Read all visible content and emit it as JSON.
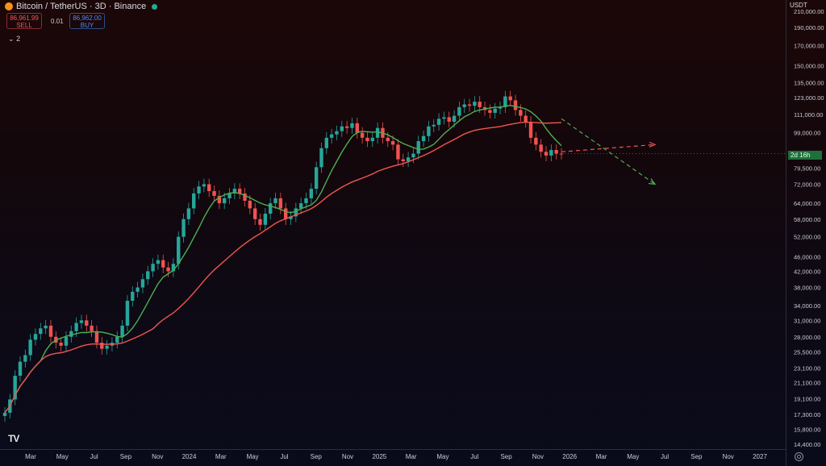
{
  "header": {
    "symbol": "Bitcoin / TetherUS · 3D · Binance",
    "sell_price": "86,961.99",
    "sell_label": "SELL",
    "spread": "0.01",
    "buy_price": "86,962.00",
    "buy_label": "BUY",
    "indicator_count": "2",
    "coin_icon": "bitcoin-icon"
  },
  "axis": {
    "currency": "USDT",
    "price_ticks": [
      "210,000.00",
      "190,000.00",
      "170,000.00",
      "150,000.00",
      "135,000.00",
      "123,000.00",
      "111,000.00",
      "99,000.00",
      "79,500.00",
      "72,000.00",
      "64,000.00",
      "58,000.00",
      "52,000.00",
      "46,000.00",
      "42,000.00",
      "38,000.00",
      "34,000.00",
      "31,000.00",
      "28,000.00",
      "25,500.00",
      "23,100.00",
      "21,100.00",
      "19,100.00",
      "17,300.00",
      "15,800.00",
      "14,400.00"
    ],
    "countdown": "2d 16h",
    "time_ticks": [
      "Mar",
      "May",
      "Jul",
      "Sep",
      "Nov",
      "2024",
      "Mar",
      "May",
      "Jul",
      "Sep",
      "Nov",
      "2025",
      "Mar",
      "May",
      "Jul",
      "Sep",
      "Nov",
      "2026",
      "Mar",
      "May",
      "Jul",
      "Sep",
      "Nov",
      "2027"
    ]
  },
  "colors": {
    "up": "#26a69a",
    "down": "#ef5350",
    "ma_fast": "#4caf50",
    "ma_slow": "#f0554f",
    "projection_red": "#f0554f",
    "projection_green": "#4caf50"
  },
  "chart_data": {
    "type": "candlestick",
    "x_unit": "3D bars (approx. weekly samples)",
    "x_range": [
      "2023-02",
      "2027-01"
    ],
    "ylim": [
      14400,
      210000
    ],
    "scale": "log",
    "series": [
      {
        "kind": "price",
        "close": [
          17500,
          19000,
          22000,
          24000,
          25000,
          27500,
          28500,
          29500,
          30000,
          28000,
          27000,
          26500,
          28000,
          29000,
          30500,
          31000,
          30000,
          29000,
          27000,
          26000,
          26500,
          27000,
          28000,
          30000,
          35000,
          37000,
          38000,
          40000,
          42000,
          44000,
          45000,
          43000,
          42000,
          44000,
          52000,
          58000,
          62000,
          68000,
          71000,
          72000,
          69000,
          67000,
          64000,
          66000,
          68000,
          70000,
          68000,
          65000,
          62000,
          58000,
          56000,
          60000,
          64000,
          66000,
          62000,
          58000,
          59000,
          62000,
          64000,
          66000,
          70000,
          80000,
          90000,
          96000,
          98000,
          100000,
          103000,
          102000,
          105000,
          99000,
          96000,
          94000,
          96000,
          102000,
          96000,
          94000,
          92000,
          84000,
          83000,
          85000,
          87000,
          94000,
          97000,
          103000,
          104000,
          108000,
          109000,
          106000,
          110000,
          116000,
          118000,
          117000,
          120000,
          116000,
          114000,
          112000,
          115000,
          116000,
          124000,
          121000,
          114000,
          110000,
          106000,
          96000,
          92000,
          88000,
          86000,
          89000,
          87000,
          86962
        ]
      },
      {
        "kind": "moving-average-fast",
        "color": "#4caf50"
      },
      {
        "kind": "moving-average-slow",
        "color": "#f0554f"
      },
      {
        "kind": "projection",
        "color": "#f0554f",
        "from": 88000,
        "to": 92000
      },
      {
        "kind": "projection",
        "color": "#4caf50",
        "from": 108000,
        "to": 72000
      }
    ],
    "last_price": 86962
  }
}
